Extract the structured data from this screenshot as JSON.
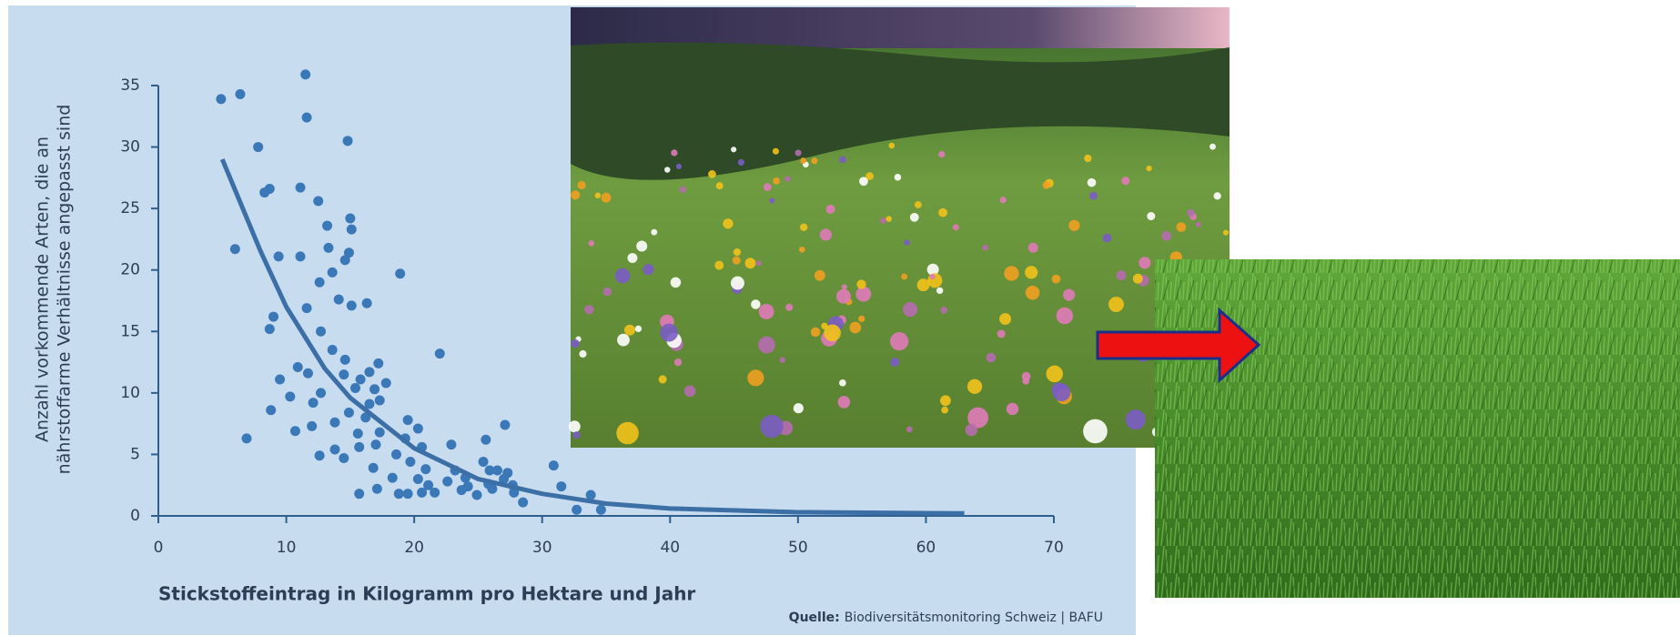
{
  "chart_data": {
    "type": "scatter",
    "y_label": [
      "Anzahl vorkommende Arten, die an",
      "nährstoffarme Verhältnisse angepasst sind"
    ],
    "x_label": "Stickstoffeintrag in Kilogramm pro Hektare und Jahr",
    "source": {
      "label": "Quelle:",
      "text": "Biodiversitätsmonitoring Schweiz | BAFU"
    },
    "color": "#3a78b8",
    "x": [
      4.9,
      6.4,
      11.5,
      11.6,
      7.8,
      14.8,
      8.3,
      8.7,
      11.1,
      12.5,
      15.0,
      15.1,
      13.2,
      6.0,
      9.4,
      11.1,
      13.3,
      14.9,
      14.6,
      13.6,
      12.6,
      18.9,
      9.0,
      11.6,
      14.1,
      15.1,
      16.3,
      8.7,
      12.7,
      22.0,
      13.6,
      14.6,
      17.2,
      10.9,
      11.7,
      9.5,
      16.5,
      15.8,
      14.5,
      17.8,
      16.9,
      15.4,
      12.7,
      10.3,
      17.3,
      16.5,
      12.1,
      8.8,
      14.9,
      16.2,
      19.5,
      20.3,
      13.8,
      12.0,
      10.7,
      15.6,
      17.3,
      6.9,
      19.3,
      15.7,
      17.0,
      13.8,
      14.5,
      12.6,
      20.6,
      18.6,
      19.7,
      16.8,
      20.9,
      18.3,
      20.3,
      15.7,
      17.1,
      18.8,
      19.5,
      20.6,
      21.1,
      21.6,
      22.6,
      22.9,
      23.2,
      24.0,
      24.2,
      24.9,
      23.7,
      25.4,
      25.6,
      25.9,
      25.8,
      26.5,
      26.1,
      27.0,
      27.3,
      27.1,
      27.8,
      28.5,
      27.7,
      30.9,
      31.5,
      32.7,
      33.8,
      34.6
    ],
    "y": [
      33.9,
      34.3,
      35.9,
      32.4,
      30.0,
      30.5,
      26.3,
      26.6,
      26.7,
      25.6,
      24.2,
      23.3,
      23.6,
      21.7,
      21.1,
      21.1,
      21.8,
      21.4,
      20.8,
      19.8,
      19.0,
      19.7,
      16.2,
      16.9,
      17.6,
      17.1,
      17.3,
      15.2,
      15.0,
      13.2,
      13.5,
      12.7,
      12.4,
      12.1,
      11.6,
      11.1,
      11.7,
      11.1,
      11.5,
      10.8,
      10.3,
      10.4,
      10.0,
      9.7,
      9.4,
      9.1,
      9.2,
      8.6,
      8.4,
      8.0,
      7.8,
      7.1,
      7.6,
      7.3,
      6.9,
      6.7,
      6.8,
      6.3,
      6.3,
      5.6,
      5.8,
      5.4,
      4.7,
      4.9,
      5.6,
      5.0,
      4.4,
      3.9,
      3.8,
      3.1,
      3.0,
      1.8,
      2.2,
      1.8,
      1.8,
      1.9,
      2.5,
      1.9,
      2.8,
      5.8,
      3.7,
      3.1,
      2.4,
      1.7,
      2.1,
      4.4,
      6.2,
      3.7,
      2.6,
      3.7,
      2.2,
      3.0,
      3.5,
      7.4,
      1.9,
      1.1,
      2.5,
      4.1,
      2.4,
      0.5,
      1.7,
      0.5
    ],
    "fit": {
      "color": "#3c6fa6",
      "x": [
        5,
        8,
        10,
        13,
        15,
        20,
        25,
        30,
        35,
        40,
        50,
        63
      ],
      "values": [
        29,
        21.5,
        17,
        12,
        9.6,
        5.5,
        3,
        1.8,
        1.0,
        0.6,
        0.3,
        0.2
      ]
    },
    "xlim": [
      0,
      70
    ],
    "xticks": [
      0,
      10,
      20,
      30,
      40,
      50,
      60,
      70
    ],
    "ylim": [
      0,
      35
    ],
    "yticks": [
      0,
      5,
      10,
      15,
      20,
      25,
      30,
      35
    ]
  }
}
